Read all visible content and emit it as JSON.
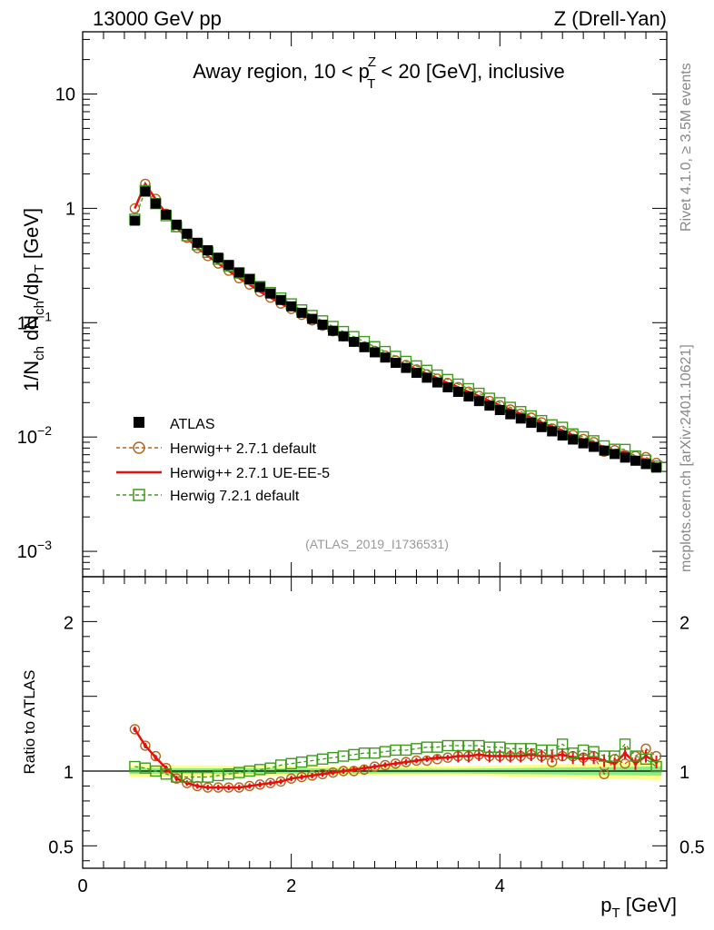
{
  "header": {
    "left": "13000 GeV pp",
    "right": "Z (Drell-Yan)"
  },
  "side_text": {
    "rivet": "Rivet 4.1.0, ≥ 3.5M events",
    "mcplots": "mcplots.cern.ch [arXiv:2401.10621]"
  },
  "chart_data": [
    {
      "type": "scatter",
      "panel": "main",
      "title_parts": {
        "pre": "Away region, 10 < p",
        "sup": "Z",
        "sub": "T",
        "post": " < 20 [GeV], inclusive"
      },
      "ylabel": "1/N_ch dN_ch/dp_T [GeV]",
      "yscale": "log",
      "xlim": [
        0,
        5.6
      ],
      "ylim": [
        0.0006,
        35
      ],
      "yticks": [
        {
          "value": 10,
          "label": "10"
        },
        {
          "value": 1,
          "label": "1"
        },
        {
          "value": 0.1,
          "label": "10",
          "exp": "−1"
        },
        {
          "value": 0.01,
          "label": "10",
          "exp": "−2"
        },
        {
          "value": 0.001,
          "label": "10",
          "exp": "−3"
        }
      ],
      "watermark": "(ATLAS_2019_I1736531)",
      "legend_position": "bottom-left",
      "x": [
        0.5,
        0.6,
        0.7,
        0.8,
        0.9,
        1.0,
        1.1,
        1.2,
        1.3,
        1.4,
        1.5,
        1.6,
        1.7,
        1.8,
        1.9,
        2.0,
        2.1,
        2.2,
        2.3,
        2.4,
        2.5,
        2.6,
        2.7,
        2.8,
        2.9,
        3.0,
        3.1,
        3.2,
        3.3,
        3.4,
        3.5,
        3.6,
        3.7,
        3.8,
        3.9,
        4.0,
        4.1,
        4.2,
        4.3,
        4.4,
        4.5,
        4.6,
        4.7,
        4.8,
        4.9,
        5.0,
        5.1,
        5.2,
        5.3,
        5.4,
        5.5
      ],
      "series": [
        {
          "name": "ATLAS",
          "color": "#000000",
          "marker": "filled-square",
          "values": [
            0.78,
            1.4,
            1.1,
            0.88,
            0.72,
            0.6,
            0.5,
            0.43,
            0.37,
            0.32,
            0.275,
            0.24,
            0.205,
            0.18,
            0.158,
            0.139,
            0.122,
            0.108,
            0.096,
            0.085,
            0.076,
            0.068,
            0.061,
            0.055,
            0.0495,
            0.0445,
            0.0402,
            0.0364,
            0.033,
            0.03,
            0.0272,
            0.0248,
            0.0226,
            0.0206,
            0.0188,
            0.0172,
            0.0158,
            0.0145,
            0.0133,
            0.0122,
            0.0112,
            0.0103,
            0.0095,
            0.0088,
            0.0082,
            0.0076,
            0.0071,
            0.0066,
            0.0062,
            0.0058,
            0.0054
          ]
        },
        {
          "name": "Herwig++ 2.7.1 default",
          "color": "#b5651d",
          "marker": "open-circle",
          "line": "dashed",
          "ratio": [
            1.28,
            1.17,
            1.1,
            1.02,
            0.95,
            0.92,
            0.9,
            0.89,
            0.89,
            0.89,
            0.89,
            0.9,
            0.91,
            0.92,
            0.93,
            0.95,
            0.96,
            0.97,
            0.98,
            0.99,
            1.0,
            1.0,
            1.01,
            1.03,
            1.04,
            1.05,
            1.06,
            1.07,
            1.07,
            1.08,
            1.09,
            1.1,
            1.1,
            1.11,
            1.1,
            1.1,
            1.1,
            1.1,
            1.11,
            1.1,
            1.06,
            1.1,
            1.1,
            1.09,
            1.1,
            0.98,
            1.08,
            1.05,
            1.1,
            1.15,
            1.1
          ]
        },
        {
          "name": "Herwig++ 2.7.1 UE-EE-5",
          "color": "#e8100f",
          "marker": "errorbar",
          "line": "solid",
          "ratio": [
            1.28,
            1.17,
            1.09,
            1.02,
            0.95,
            0.92,
            0.9,
            0.89,
            0.89,
            0.89,
            0.89,
            0.9,
            0.91,
            0.92,
            0.93,
            0.95,
            0.96,
            0.97,
            0.98,
            0.99,
            1.0,
            1.01,
            1.02,
            1.03,
            1.04,
            1.05,
            1.06,
            1.07,
            1.08,
            1.09,
            1.09,
            1.1,
            1.1,
            1.11,
            1.1,
            1.1,
            1.1,
            1.1,
            1.11,
            1.1,
            1.1,
            1.11,
            1.09,
            1.08,
            1.09,
            1.07,
            1.05,
            1.12,
            1.05,
            1.1,
            1.06
          ]
        },
        {
          "name": "Herwig 7.2.1 default",
          "color": "#3e9c1c",
          "marker": "open-square",
          "line": "dashed",
          "ratio": [
            1.03,
            1.02,
            1.0,
            0.98,
            0.96,
            0.96,
            0.96,
            0.96,
            0.97,
            0.98,
            0.99,
            1.0,
            1.01,
            1.02,
            1.04,
            1.05,
            1.06,
            1.07,
            1.08,
            1.09,
            1.1,
            1.11,
            1.12,
            1.12,
            1.13,
            1.14,
            1.14,
            1.15,
            1.16,
            1.16,
            1.17,
            1.17,
            1.17,
            1.17,
            1.16,
            1.16,
            1.15,
            1.15,
            1.15,
            1.14,
            1.14,
            1.18,
            1.12,
            1.14,
            1.13,
            1.1,
            1.1,
            1.18,
            1.1,
            1.08,
            1.03
          ]
        }
      ]
    },
    {
      "type": "scatter",
      "panel": "ratio",
      "ylabel": "Ratio to ATLAS",
      "xlabel": "p_T [GeV]",
      "xlim": [
        0,
        5.6
      ],
      "ylim": [
        0.35,
        2.3
      ],
      "yticks": [
        {
          "value": 2,
          "label": "2"
        },
        {
          "value": 1,
          "label": "1"
        },
        {
          "value": 0.5,
          "label": "0.5"
        }
      ],
      "xticks": [
        {
          "value": 0,
          "label": "0"
        },
        {
          "value": 2,
          "label": "2"
        },
        {
          "value": 4,
          "label": "4"
        }
      ],
      "reference_line": 1,
      "band_colors": {
        "outer": "#ffff88",
        "inner": "#88ee88"
      }
    }
  ]
}
